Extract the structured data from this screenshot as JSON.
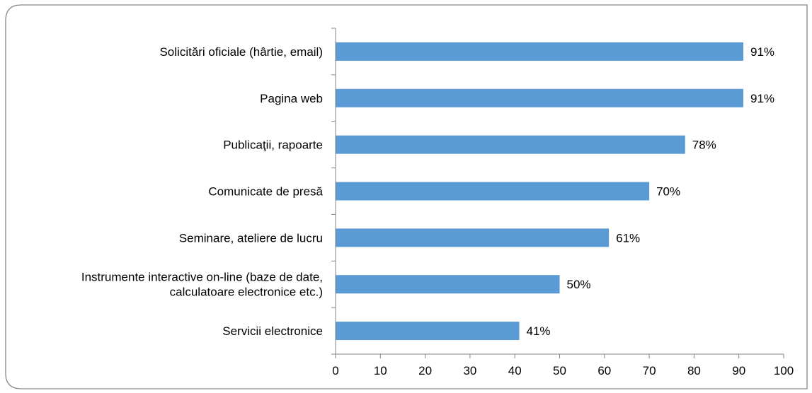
{
  "chart_data": {
    "type": "bar",
    "orientation": "horizontal",
    "categories": [
      "Solicitări oficiale (hârtie, email)",
      "Pagina web",
      "Publicaţii, rapoarte",
      "Comunicate de presă",
      "Seminare, ateliere de lucru",
      "Instrumente interactive on-line (baze de date, calculatoare electronice etc.)",
      "Servicii electronice"
    ],
    "category_lines": [
      [
        "Solicitări oficiale (hârtie, email)"
      ],
      [
        "Pagina web"
      ],
      [
        "Publicaţii, rapoarte"
      ],
      [
        "Comunicate de presă"
      ],
      [
        "Seminare, ateliere de lucru"
      ],
      [
        "Instrumente interactive on-line (baze de date,",
        "calculatoare electronice etc.)"
      ],
      [
        "Servicii electronice"
      ]
    ],
    "values": [
      91,
      91,
      78,
      70,
      61,
      50,
      41
    ],
    "data_labels": [
      "91%",
      "91%",
      "78%",
      "70%",
      "61%",
      "50%",
      "41%"
    ],
    "xlim": [
      0,
      100
    ],
    "x_ticks": [
      0,
      10,
      20,
      30,
      40,
      50,
      60,
      70,
      80,
      90,
      100
    ],
    "title": "",
    "xlabel": "",
    "ylabel": "",
    "grid": false,
    "legend": false,
    "bar_color": "#5B9BD5",
    "axis_color": "#868686",
    "frame_color": "#868686"
  }
}
